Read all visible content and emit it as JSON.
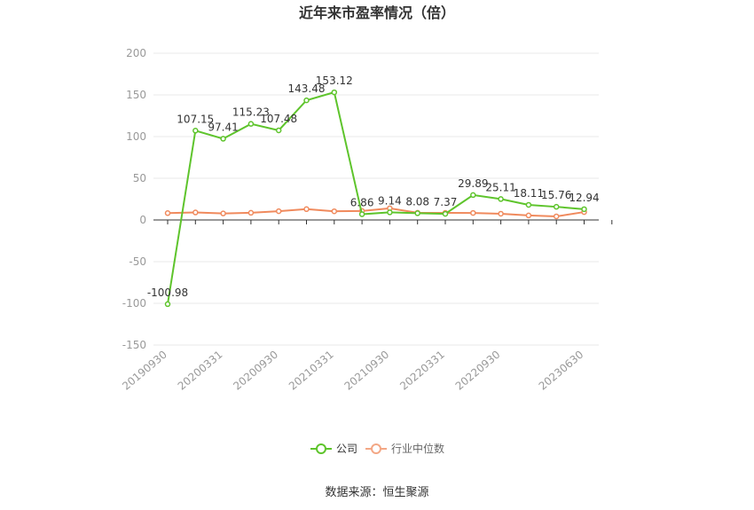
{
  "title": "近年来市盈率情况（倍）",
  "source_text": "数据来源：恒生聚源",
  "colors": {
    "company": "#5ec42c",
    "industry": "#f08a5d",
    "grid": "#e8e8e8",
    "axis": "#333333",
    "tick_text": "#999999"
  },
  "chart_data": {
    "type": "line",
    "title": "近年来市盈率情况（倍）",
    "xlabel": "",
    "ylabel": "",
    "ylim": [
      -150,
      200
    ],
    "yticks": [
      -150,
      -100,
      -50,
      0,
      50,
      100,
      150,
      200
    ],
    "grid": true,
    "legend_position": "bottom",
    "x": [
      "20190930",
      "20191231",
      "20200331",
      "20200630",
      "20200930",
      "20201231",
      "20210331",
      "20210630",
      "20210930",
      "20211231",
      "20220331",
      "20220630",
      "20220930",
      "20221231",
      "20230331",
      "20230630",
      "20230930"
    ],
    "x_tick_labels": [
      "20190930",
      "20200331",
      "20200930",
      "20210331",
      "20210930",
      "20220331",
      "20220930",
      "20230630"
    ],
    "x_tick_indices": [
      0,
      2,
      4,
      6,
      8,
      10,
      12,
      15
    ],
    "series": [
      {
        "name": "公司",
        "values": [
          -100.98,
          107.15,
          97.41,
          115.23,
          107.48,
          143.48,
          153.12,
          6.86,
          9.14,
          8.08,
          7.37,
          29.89,
          25.11,
          18.11,
          15.76,
          12.94,
          null
        ],
        "labels": [
          "-100.98",
          "107.15",
          "97.41",
          "115.23",
          "107.48",
          "143.48",
          "153.12",
          "6.86",
          "9.14",
          "8.08",
          "7.37",
          "29.89",
          "25.11",
          "18.11",
          "15.76",
          "12.94",
          ""
        ]
      },
      {
        "name": "行业中位数",
        "values": [
          8.2,
          9.0,
          7.8,
          8.6,
          10.5,
          13.0,
          10.4,
          10.8,
          14.0,
          8.6,
          8.5,
          8.4,
          7.5,
          5.4,
          4.3,
          9.5,
          null
        ]
      }
    ]
  }
}
